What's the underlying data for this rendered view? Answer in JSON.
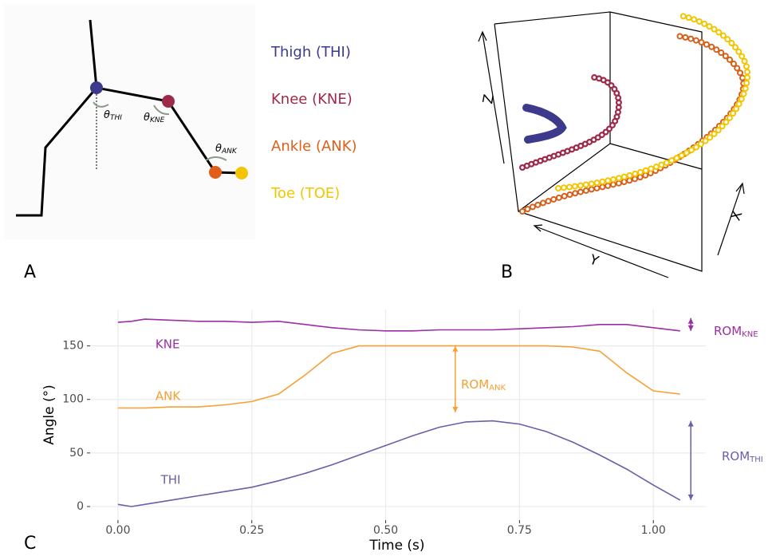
{
  "panel_labels": [
    "A",
    "B",
    "C"
  ],
  "diagram": {
    "segments": [
      {
        "name": "Thigh (THI)",
        "color": "#3d3a8c"
      },
      {
        "name": "Knee (KNE)",
        "color": "#9e2a4a"
      },
      {
        "name": "Ankle (ANK)",
        "color": "#e0601a"
      },
      {
        "name": "Toe (TOE)",
        "color": "#f2c500"
      }
    ],
    "angles": [
      {
        "symbol": "θ",
        "sub": "THI"
      },
      {
        "symbol": "θ",
        "sub": "KNE"
      },
      {
        "symbol": "θ",
        "sub": "ANK"
      }
    ]
  },
  "scatter3d": {
    "axes": [
      "Z",
      "Y",
      "X"
    ]
  },
  "chart_data": {
    "type": "line",
    "x_label": "Time (s)",
    "y_label": "Angle (°)",
    "x": [
      0,
      0.025,
      0.05,
      0.1,
      0.15,
      0.2,
      0.25,
      0.3,
      0.35,
      0.4,
      0.45,
      0.5,
      0.55,
      0.6,
      0.65,
      0.7,
      0.75,
      0.8,
      0.85,
      0.9,
      0.95,
      1.0,
      1.05
    ],
    "series": [
      {
        "name": "KNE",
        "color": "#9b2fa3",
        "values": [
          172,
          173,
          175,
          174,
          173,
          173,
          172,
          173,
          170,
          167,
          165,
          164,
          164,
          165,
          165,
          165,
          166,
          167,
          168,
          170,
          170,
          167,
          164
        ]
      },
      {
        "name": "ANK",
        "color": "#f7a033",
        "values": [
          92,
          92,
          92,
          93,
          93,
          95,
          98,
          105,
          123,
          143,
          150,
          150,
          150,
          150,
          150,
          150,
          150,
          150,
          149,
          145,
          125,
          108,
          105
        ]
      },
      {
        "name": "THI",
        "color": "#6a5fa8",
        "values": [
          2,
          0,
          2,
          6,
          10,
          14,
          18,
          24,
          31,
          39,
          48,
          57,
          66,
          74,
          79,
          80,
          77,
          70,
          60,
          48,
          35,
          20,
          6
        ]
      }
    ],
    "annotations": [
      {
        "text": "ROM",
        "sub": "KNE",
        "color": "#9b2fa3",
        "x": 1.07,
        "range": [
          164,
          176
        ]
      },
      {
        "text": "ROM",
        "sub": "ANK",
        "color": "#f7a033",
        "x": 0.63,
        "range": [
          88,
          150
        ]
      },
      {
        "text": "ROM",
        "sub": "THI",
        "color": "#6a5fa8",
        "x": 1.07,
        "range": [
          6,
          80
        ]
      }
    ],
    "xlim": [
      -0.052,
      1.098
    ],
    "ylim": [
      -12.7,
      184
    ],
    "xticks": [
      {
        "value": 0,
        "label": "0.00"
      },
      {
        "value": 0.25,
        "label": "0.25"
      },
      {
        "value": 0.5,
        "label": "0.50"
      },
      {
        "value": 0.75,
        "label": "0.75"
      },
      {
        "value": 1,
        "label": "1.00"
      }
    ],
    "yticks": [
      0,
      50,
      100,
      150
    ],
    "grid": true
  }
}
